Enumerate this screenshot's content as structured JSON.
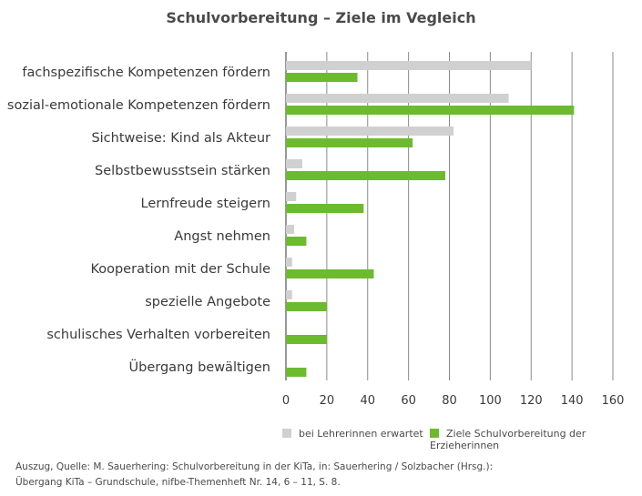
{
  "chart_data": {
    "type": "bar",
    "orientation": "horizontal",
    "title": "Schulvorbereitung – Ziele im Vegleich",
    "categories": [
      "fachspezifische Kompetenzen fördern",
      "sozial-emotionale Kompetenzen fördern",
      "Sichtweise: Kind als Akteur",
      "Selbstbewusstsein stärken",
      "Lernfreude steigern",
      "Angst nehmen",
      "Kooperation mit der Schule",
      "spezielle Angebote",
      "schulisches Verhalten vorbereiten",
      "Übergang bewältigen"
    ],
    "series": [
      {
        "name": "bei Lehrerinnen erwartet",
        "color": "#d0d0d0",
        "values": [
          120,
          109,
          82,
          8,
          5,
          4,
          3,
          3,
          0,
          0
        ]
      },
      {
        "name": "Ziele Schulvorbereitung der Erzieherinnen",
        "color": "#6cbb2e",
        "values": [
          35,
          141,
          62,
          78,
          38,
          10,
          43,
          20,
          20,
          10
        ]
      }
    ],
    "xlim": [
      0,
      160
    ],
    "xticks": [
      "0",
      "20",
      "40",
      "60",
      "80",
      "100",
      "120",
      "140",
      "160"
    ],
    "grid": "vertical",
    "legend_position": "bottom"
  },
  "source": {
    "line1": "Auszug, Quelle: M. Sauerhering: Schulvorbereitung in der KiTa, in: Sauerhering / Solzbacher (Hrsg.):",
    "line2": "Übergang KiTa – Grundschule, nifbe-Themenheft Nr. 14, 6 – 11, S. 8."
  }
}
